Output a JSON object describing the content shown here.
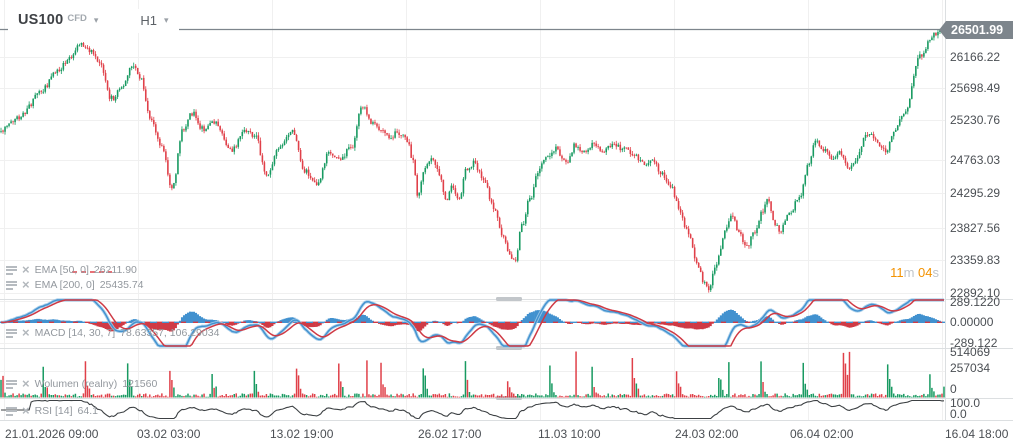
{
  "header": {
    "symbol": "US100",
    "market_type": "CFD",
    "timeframe": "H1"
  },
  "icons": {
    "chevron_down": "▾",
    "close": "×"
  },
  "price_axis": {
    "current_price": "26501.99",
    "labels": [
      "26166.22",
      "25698.49",
      "25230.76",
      "24763.03",
      "24295.29",
      "23827.56",
      "23359.83",
      "22892.10"
    ]
  },
  "countdown": {
    "minutes": "11",
    "unit_m": "m",
    "seconds": "04",
    "unit_s": "s"
  },
  "indicators": {
    "ema_fast": {
      "label": "EMA [50, 0]",
      "value": "26211.90"
    },
    "ema_slow": {
      "label": "EMA [200, 0]",
      "value": "25435.74"
    },
    "macd": {
      "label": "MACD [14, 30, 7]",
      "value": "78.63357, 106.29034",
      "axis_labels": [
        "289.1220",
        "0.00000",
        "-289.122"
      ]
    },
    "volumes": {
      "label": "Wolumen (realny)",
      "value": "121560",
      "axis_labels": [
        "514069",
        "257034",
        "0"
      ]
    },
    "rsi": {
      "label": "RSI [14]",
      "value": "64.1",
      "axis_labels": [
        "100.0",
        "0.0"
      ]
    }
  },
  "time_axis": {
    "labels": [
      "21.01.2026 09:00",
      "03.02 03:00",
      "13.02 19:00",
      "26.02 17:00",
      "11.03 10:00",
      "24.03 02:00",
      "06.04 02:00",
      "16.04 18:00"
    ]
  },
  "colors": {
    "bull": "#189a61",
    "bear": "#e04049",
    "macd_line": "#4191cf",
    "macd_halo": "#9ec9e8",
    "signal_line": "#cf3a45",
    "rsi_line": "#3c4043",
    "grid": "#f0f0f0",
    "separator": "#dcdfe1",
    "handle": "#c2c6ca",
    "price_line": "#7d858c",
    "badge_bg": "#7d858c",
    "badge_text": "#ffffff",
    "countdown_accent": "#f39200",
    "countdown_unit": "#c0c4c8",
    "legend_text": "#93989e",
    "axis_text": "#4b4f54"
  },
  "chart_data": {
    "type": "candlestick",
    "title": "US100 CFD, H1",
    "time_range": [
      "21.01.2026 09:00",
      "16.04 18:00"
    ],
    "price_range_visible": [
      22892.1,
      26501.99
    ],
    "last_price": 26501.99,
    "candle_count": 470,
    "price_anchors": [
      [
        0,
        25124
      ],
      [
        20,
        25331
      ],
      [
        42,
        25675
      ],
      [
        57,
        25951
      ],
      [
        71,
        26158
      ],
      [
        80,
        26337
      ],
      [
        90,
        26226
      ],
      [
        99,
        26061
      ],
      [
        112,
        25565
      ],
      [
        123,
        25744
      ],
      [
        132,
        26047
      ],
      [
        140,
        25882
      ],
      [
        151,
        25262
      ],
      [
        162,
        24900
      ],
      [
        172,
        24325
      ],
      [
        183,
        25150
      ],
      [
        192,
        25372
      ],
      [
        203,
        25152
      ],
      [
        215,
        25234
      ],
      [
        232,
        24848
      ],
      [
        244,
        25152
      ],
      [
        255,
        25055
      ],
      [
        267,
        24504
      ],
      [
        279,
        24876
      ],
      [
        293,
        25124
      ],
      [
        304,
        24573
      ],
      [
        317,
        24366
      ],
      [
        329,
        24821
      ],
      [
        340,
        24738
      ],
      [
        352,
        24917
      ],
      [
        362,
        25469
      ],
      [
        371,
        25262
      ],
      [
        381,
        25152
      ],
      [
        390,
        25055
      ],
      [
        400,
        25097
      ],
      [
        408,
        24986
      ],
      [
        413,
        24700
      ],
      [
        418,
        24229
      ],
      [
        425,
        24642
      ],
      [
        432,
        24738
      ],
      [
        439,
        24545
      ],
      [
        446,
        24160
      ],
      [
        452,
        24366
      ],
      [
        459,
        24160
      ],
      [
        466,
        24573
      ],
      [
        474,
        24683
      ],
      [
        484,
        24435
      ],
      [
        493,
        24091
      ],
      [
        503,
        23678
      ],
      [
        510,
        23402
      ],
      [
        515,
        23333
      ],
      [
        522,
        23815
      ],
      [
        529,
        24160
      ],
      [
        539,
        24573
      ],
      [
        546,
        24780
      ],
      [
        556,
        24876
      ],
      [
        565,
        24683
      ],
      [
        575,
        24917
      ],
      [
        584,
        24821
      ],
      [
        593,
        24959
      ],
      [
        603,
        24848
      ],
      [
        612,
        24945
      ],
      [
        624,
        24876
      ],
      [
        635,
        24780
      ],
      [
        644,
        24683
      ],
      [
        654,
        24738
      ],
      [
        661,
        24545
      ],
      [
        671,
        24366
      ],
      [
        678,
        24091
      ],
      [
        688,
        23719
      ],
      [
        697,
        23306
      ],
      [
        704,
        23030
      ],
      [
        709,
        22947
      ],
      [
        716,
        23306
      ],
      [
        726,
        23774
      ],
      [
        732,
        23994
      ],
      [
        739,
        23719
      ],
      [
        747,
        23540
      ],
      [
        754,
        23719
      ],
      [
        762,
        23994
      ],
      [
        767,
        24187
      ],
      [
        775,
        23856
      ],
      [
        780,
        23746
      ],
      [
        788,
        23953
      ],
      [
        800,
        24200
      ],
      [
        808,
        24642
      ],
      [
        815,
        25014
      ],
      [
        824,
        24848
      ],
      [
        832,
        24738
      ],
      [
        840,
        24821
      ],
      [
        848,
        24601
      ],
      [
        856,
        24711
      ],
      [
        864,
        25014
      ],
      [
        870,
        25097
      ],
      [
        878,
        24959
      ],
      [
        886,
        24848
      ],
      [
        895,
        25152
      ],
      [
        905,
        25400
      ],
      [
        920,
        26158
      ],
      [
        935,
        26474
      ],
      [
        945,
        26501.99
      ]
    ],
    "indicators": {
      "ema": [
        {
          "period": 50,
          "value": 26211.9
        },
        {
          "period": 200,
          "value": 25435.74
        }
      ],
      "macd": {
        "fast": 14,
        "slow": 30,
        "signal": 7,
        "last": [
          78.63357,
          106.29034
        ],
        "range": [
          -289.122,
          289.122
        ]
      },
      "volume": {
        "last": 121560,
        "max": 514069
      },
      "rsi": {
        "period": 14,
        "last": 64.1,
        "range": [
          0,
          100
        ]
      }
    }
  }
}
